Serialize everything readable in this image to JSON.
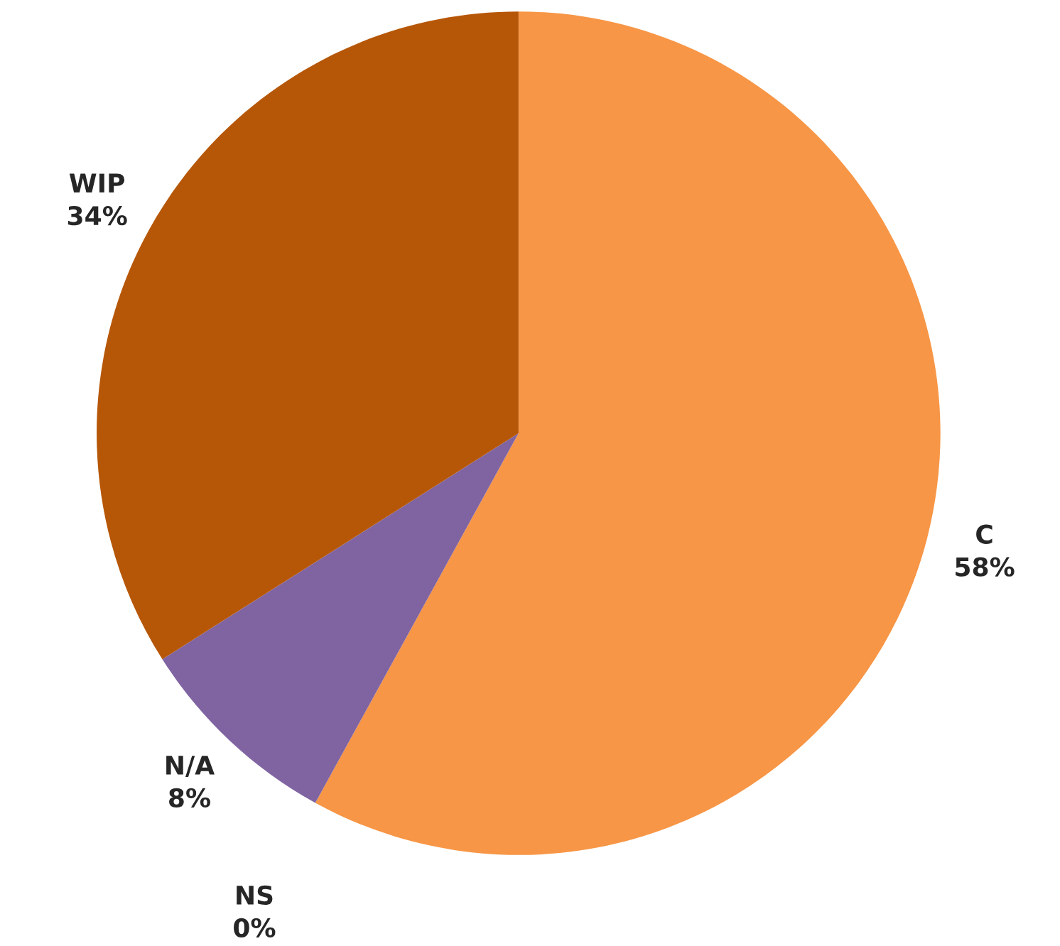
{
  "chart_data": {
    "type": "pie",
    "categories": [
      "C",
      "NS",
      "N/A",
      "WIP"
    ],
    "values": [
      58,
      0,
      8,
      34
    ],
    "colors": [
      "#f79646",
      "#4bacc6",
      "#8064a2",
      "#b65708"
    ],
    "value_labels": [
      "58%",
      "0%",
      "8%",
      "34%"
    ]
  }
}
